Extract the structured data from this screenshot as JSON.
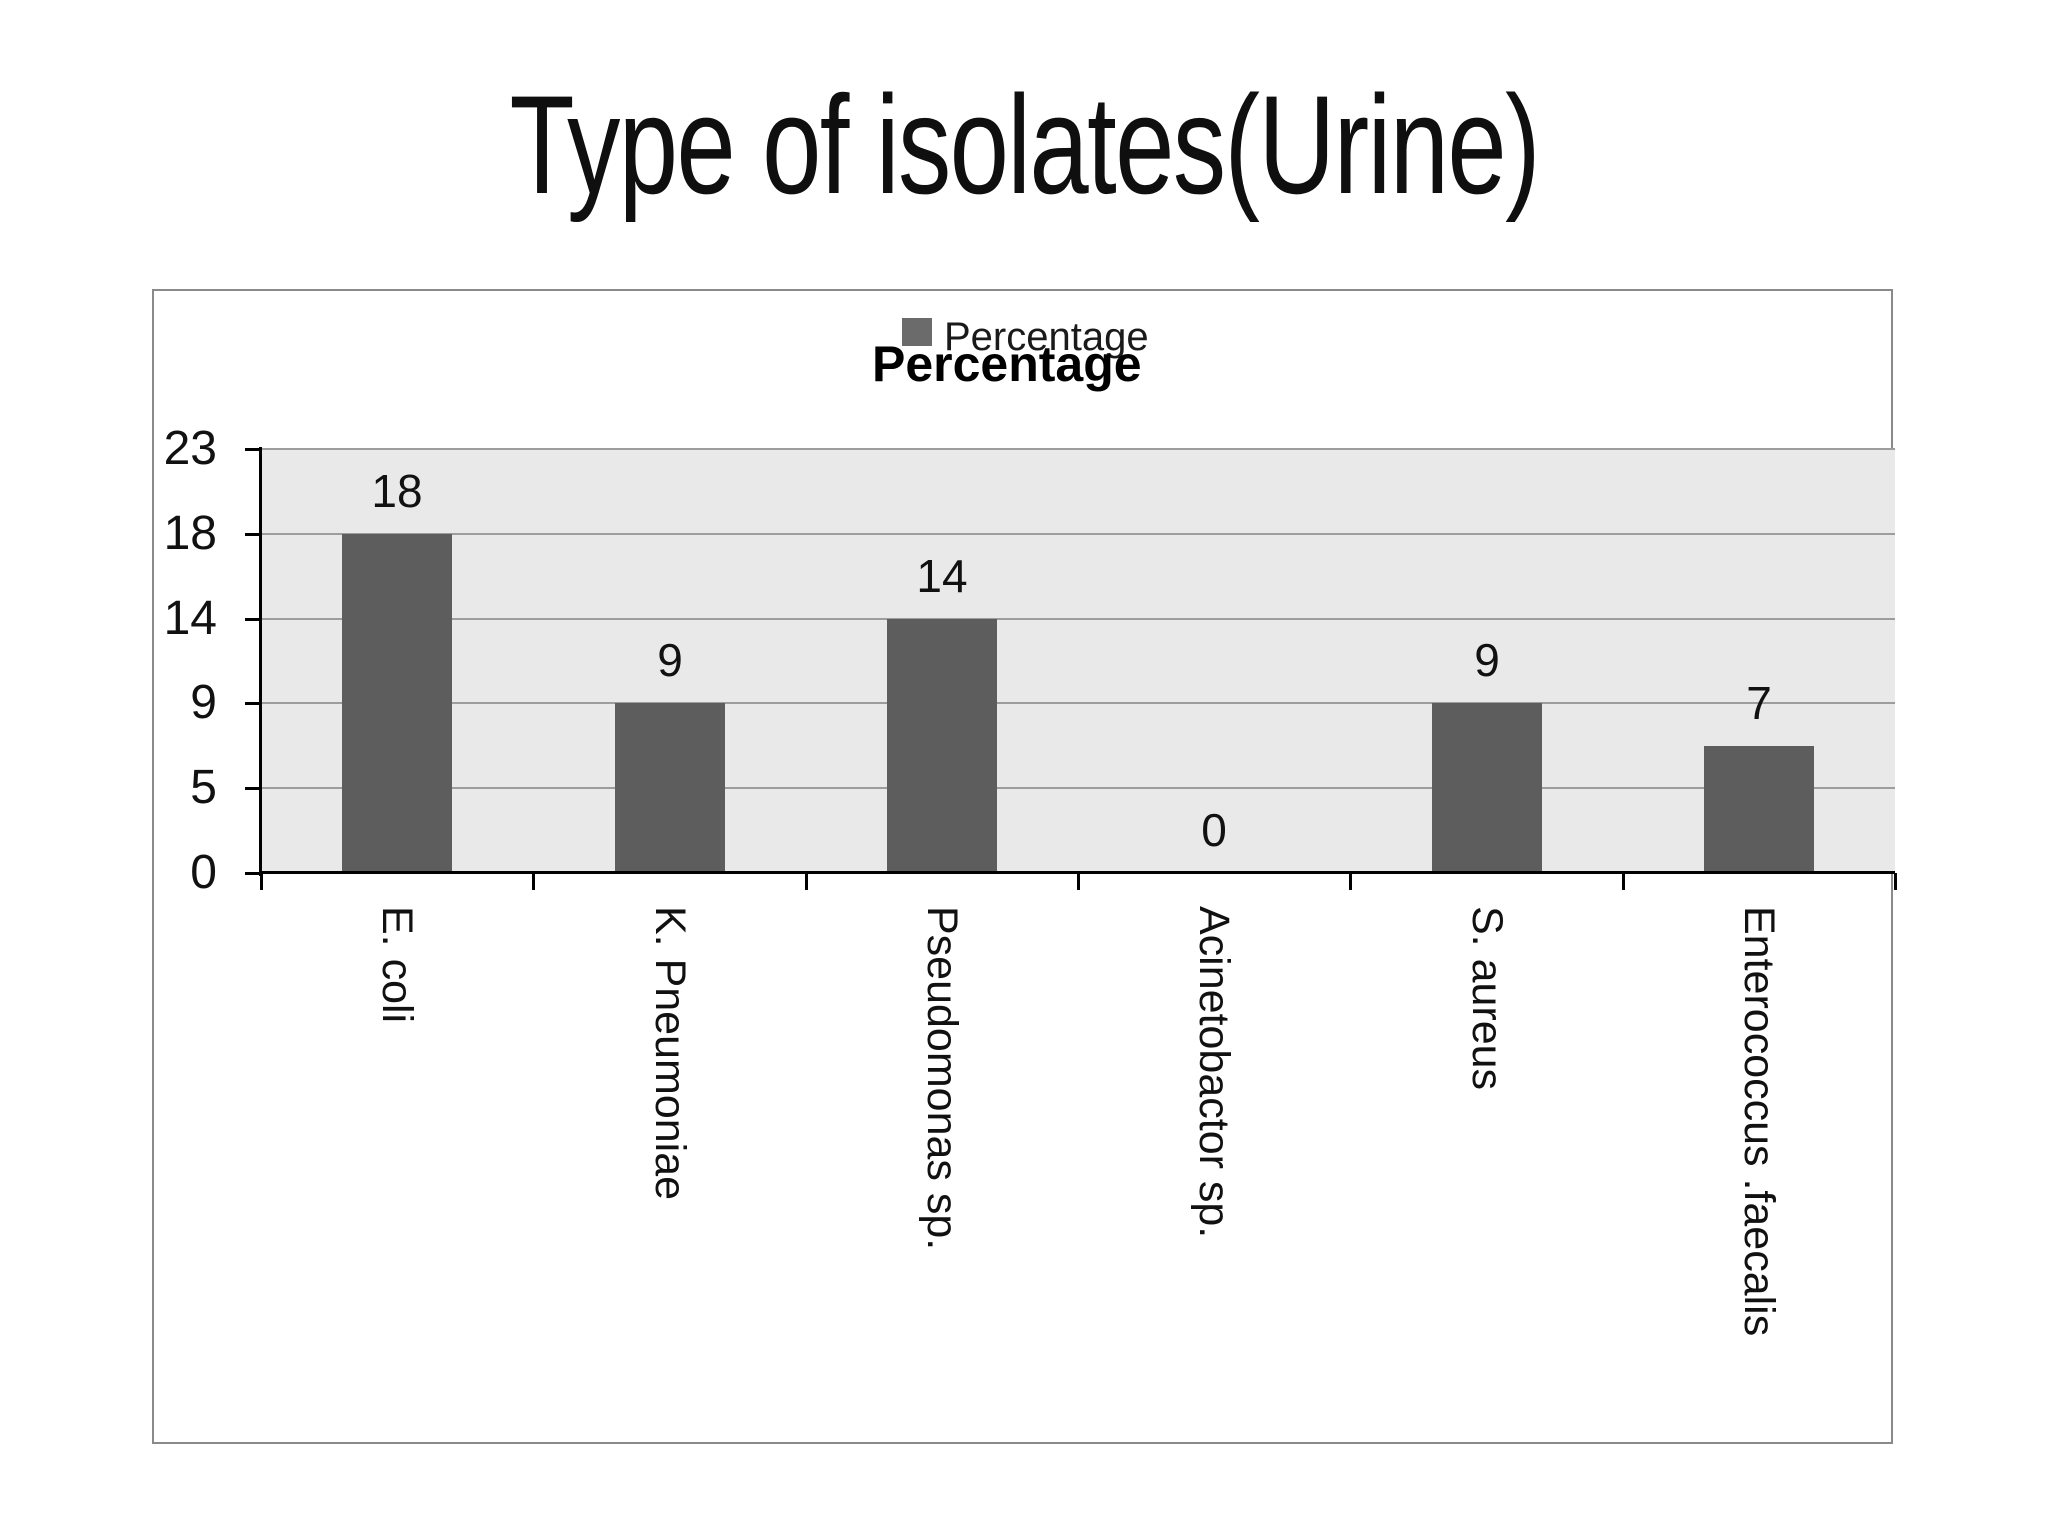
{
  "page_title": "Type of isolates(Urine)",
  "legend": {
    "label": "Percentage",
    "swatch_color": "#6b6b6b"
  },
  "chart_title": "Percentage",
  "chart_data": {
    "type": "bar",
    "title": "Percentage",
    "categories": [
      "E. coli",
      "K. Pneumoniae",
      "Pseudomonas sp.",
      "Acinetobactor sp.",
      "S. aureus",
      "Enterococcus .faecalis"
    ],
    "values": [
      18,
      9,
      14,
      0,
      9,
      7
    ],
    "data_labels": [
      "18",
      "9",
      "14",
      "0",
      "9",
      "7"
    ],
    "series": [
      {
        "name": "Percentage",
        "values": [
          18,
          9,
          14,
          0,
          9,
          7
        ]
      }
    ],
    "y_ticks": [
      "23",
      "18",
      "14",
      "9",
      "5",
      "0"
    ],
    "y_tick_values": [
      23,
      18,
      14,
      9,
      5,
      0
    ],
    "ylim": [
      0,
      23
    ],
    "xlabel": "",
    "ylabel": "",
    "grid": true,
    "legend_position": "top-center",
    "bar_color": "#5d5d5d",
    "plot_bg": "#e9e9e9",
    "gridline_color": "#9d9d9d",
    "axis_color": "#000000",
    "frame_color": "#8a8a8a"
  }
}
